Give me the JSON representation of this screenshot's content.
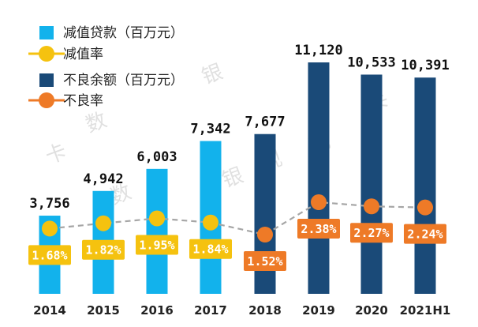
{
  "chart_data": {
    "type": "bar",
    "categories": [
      "2014",
      "2015",
      "2016",
      "2017",
      "2018",
      "2019",
      "2020",
      "2021H1"
    ],
    "series": [
      {
        "name": "减值贷款（百万元）",
        "kind": "bar",
        "color": "#12B2EC",
        "values": [
          3756,
          4942,
          6003,
          7342,
          null,
          null,
          null,
          null
        ],
        "labels": [
          "3,756",
          "4,942",
          "6,003",
          "7,342",
          "",
          "",
          "",
          ""
        ]
      },
      {
        "name": "减值率",
        "kind": "line",
        "color": "#F5C20F",
        "values": [
          1.68,
          1.82,
          1.95,
          1.84,
          null,
          null,
          null,
          null
        ],
        "labels": [
          "1.68%",
          "1.82%",
          "1.95%",
          "1.84%",
          "",
          "",
          "",
          ""
        ]
      },
      {
        "name": "不良余额（百万元）",
        "kind": "bar",
        "color": "#1A4A78",
        "values": [
          null,
          null,
          null,
          null,
          7677,
          11120,
          10533,
          10391
        ],
        "labels": [
          "",
          "",
          "",
          "",
          "7,677",
          "11,120",
          "10,533",
          "10,391"
        ]
      },
      {
        "name": "不良率",
        "kind": "line",
        "color": "#EE7A27",
        "values": [
          null,
          null,
          null,
          null,
          1.52,
          2.38,
          2.27,
          2.24
        ],
        "labels": [
          "",
          "",
          "",
          "",
          "1.52%",
          "2.38%",
          "2.27%",
          "2.24%"
        ]
      }
    ],
    "title": "",
    "xlabel": "",
    "ylabel": "",
    "ylim": [
      0,
      12000
    ],
    "rate_lim": [
      0.5,
      3.2
    ],
    "grid": false,
    "legend_position": "top-left",
    "connector_color": "#A6A6A6"
  },
  "watermark": [
    "银",
    "数",
    "观",
    "卡",
    "银",
    "数",
    "观",
    "卡"
  ]
}
